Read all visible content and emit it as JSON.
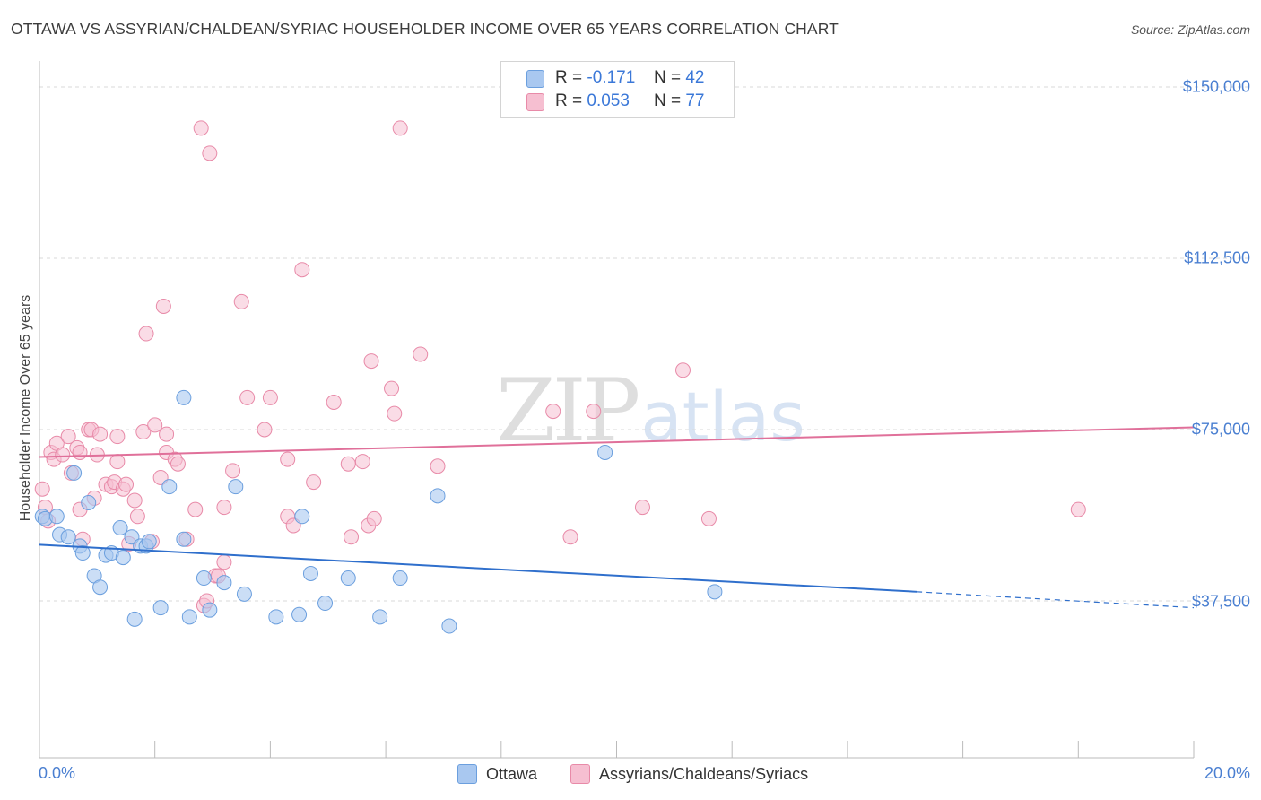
{
  "title": "OTTAWA VS ASSYRIAN/CHALDEAN/SYRIAC HOUSEHOLDER INCOME OVER 65 YEARS CORRELATION CHART",
  "source": "Source: ZipAtlas.com",
  "watermark": {
    "zip": "ZIP",
    "atlas": "atlas"
  },
  "colors": {
    "ottawa_fill": "#a9c8f0",
    "ottawa_stroke": "#6b9fde",
    "ottawa_line": "#2f6fcc",
    "assyrian_fill": "#f6bfd1",
    "assyrian_stroke": "#e88aa8",
    "assyrian_line": "#e0709a",
    "grid": "#d9d9d9",
    "tick_label": "#4a7fd1"
  },
  "legend": {
    "ottawa": {
      "r_label": "R =",
      "r_value": "-0.171",
      "n_label": "N =",
      "n_value": "42"
    },
    "assyrian": {
      "r_label": "R =",
      "r_value": "0.053",
      "n_label": "N =",
      "n_value": "77"
    }
  },
  "chart_data": {
    "type": "scatter",
    "title": "OTTAWA VS ASSYRIAN/CHALDEAN/SYRIAC HOUSEHOLDER INCOME OVER 65 YEARS CORRELATION CHART",
    "xlabel": "",
    "ylabel": "Householder Income Over 65 years",
    "xlim": [
      0,
      20
    ],
    "ylim": [
      0,
      157000
    ],
    "x_tick_labels": [
      "0.0%",
      "20.0%"
    ],
    "y_ticks": [
      37500,
      75000,
      112500,
      150000
    ],
    "y_tick_labels": [
      "$37,500",
      "$75,000",
      "$112,500",
      "$150,000"
    ],
    "legend_position": "top-center",
    "series": [
      {
        "name": "Ottawa",
        "trend": {
          "x": [
            0,
            15.2
          ],
          "y": [
            49800,
            39500
          ],
          "dashed_to": [
            20,
            36000
          ]
        },
        "points": [
          [
            0.05,
            56000
          ],
          [
            0.1,
            55500
          ],
          [
            0.3,
            56000
          ],
          [
            0.35,
            52000
          ],
          [
            0.5,
            51500
          ],
          [
            0.6,
            65500
          ],
          [
            0.7,
            49500
          ],
          [
            0.75,
            48000
          ],
          [
            0.85,
            59000
          ],
          [
            0.95,
            43000
          ],
          [
            1.05,
            40500
          ],
          [
            1.15,
            47500
          ],
          [
            1.25,
            48000
          ],
          [
            1.45,
            47000
          ],
          [
            1.4,
            53500
          ],
          [
            1.6,
            51500
          ],
          [
            1.75,
            49500
          ],
          [
            1.85,
            49500
          ],
          [
            1.9,
            50500
          ],
          [
            1.65,
            33500
          ],
          [
            2.1,
            36000
          ],
          [
            2.25,
            62500
          ],
          [
            2.5,
            82000
          ],
          [
            2.5,
            51000
          ],
          [
            2.6,
            34000
          ],
          [
            2.85,
            42500
          ],
          [
            2.95,
            35500
          ],
          [
            3.2,
            41500
          ],
          [
            3.4,
            62500
          ],
          [
            3.55,
            39000
          ],
          [
            4.1,
            34000
          ],
          [
            4.5,
            34500
          ],
          [
            4.55,
            56000
          ],
          [
            4.7,
            43500
          ],
          [
            4.95,
            37000
          ],
          [
            5.35,
            42500
          ],
          [
            5.9,
            34000
          ],
          [
            6.25,
            42500
          ],
          [
            6.9,
            60500
          ],
          [
            7.1,
            32000
          ],
          [
            9.8,
            70000
          ],
          [
            11.7,
            39500
          ]
        ]
      },
      {
        "name": "Assyrians/Chaldeans/Syriacs",
        "trend": {
          "x": [
            0,
            20
          ],
          "y": [
            69000,
            75500
          ]
        },
        "points": [
          [
            0.05,
            62000
          ],
          [
            0.1,
            58000
          ],
          [
            0.15,
            55000
          ],
          [
            0.2,
            70000
          ],
          [
            0.25,
            68500
          ],
          [
            0.3,
            72000
          ],
          [
            0.4,
            69500
          ],
          [
            0.5,
            73500
          ],
          [
            0.55,
            65500
          ],
          [
            0.65,
            71000
          ],
          [
            0.7,
            70000
          ],
          [
            0.7,
            57500
          ],
          [
            0.75,
            51000
          ],
          [
            0.85,
            75000
          ],
          [
            0.9,
            75000
          ],
          [
            0.95,
            60000
          ],
          [
            1.0,
            69500
          ],
          [
            1.05,
            74000
          ],
          [
            1.15,
            63000
          ],
          [
            1.25,
            62500
          ],
          [
            1.3,
            63500
          ],
          [
            1.35,
            73500
          ],
          [
            1.35,
            68000
          ],
          [
            1.45,
            62000
          ],
          [
            1.55,
            50000
          ],
          [
            1.5,
            63000
          ],
          [
            1.65,
            59500
          ],
          [
            1.7,
            56000
          ],
          [
            1.8,
            74500
          ],
          [
            1.85,
            96000
          ],
          [
            1.95,
            50500
          ],
          [
            2.0,
            76000
          ],
          [
            2.1,
            64500
          ],
          [
            2.15,
            102000
          ],
          [
            2.2,
            74000
          ],
          [
            2.2,
            70000
          ],
          [
            2.35,
            68500
          ],
          [
            2.4,
            67500
          ],
          [
            2.55,
            51000
          ],
          [
            2.7,
            57500
          ],
          [
            2.8,
            141000
          ],
          [
            2.85,
            36500
          ],
          [
            2.9,
            37500
          ],
          [
            2.95,
            135500
          ],
          [
            3.05,
            43000
          ],
          [
            3.2,
            46000
          ],
          [
            3.2,
            58000
          ],
          [
            3.35,
            66000
          ],
          [
            3.5,
            103000
          ],
          [
            3.6,
            82000
          ],
          [
            3.9,
            75000
          ],
          [
            4.0,
            82000
          ],
          [
            4.3,
            68500
          ],
          [
            4.3,
            56000
          ],
          [
            4.4,
            54000
          ],
          [
            4.55,
            110000
          ],
          [
            4.75,
            63500
          ],
          [
            5.1,
            81000
          ],
          [
            5.35,
            67500
          ],
          [
            5.4,
            51500
          ],
          [
            5.6,
            68000
          ],
          [
            5.7,
            54000
          ],
          [
            5.75,
            90000
          ],
          [
            5.8,
            55500
          ],
          [
            6.1,
            84000
          ],
          [
            6.15,
            78500
          ],
          [
            6.25,
            141000
          ],
          [
            6.6,
            91500
          ],
          [
            6.9,
            67000
          ],
          [
            8.9,
            79000
          ],
          [
            9.2,
            51500
          ],
          [
            9.6,
            79000
          ],
          [
            10.45,
            58000
          ],
          [
            11.15,
            88000
          ],
          [
            11.6,
            55500
          ],
          [
            18.0,
            57500
          ],
          [
            3.1,
            43000
          ]
        ]
      }
    ]
  },
  "bottom_legend": {
    "ottawa": "Ottawa",
    "assyrian": "Assyrians/Chaldeans/Syriacs"
  }
}
